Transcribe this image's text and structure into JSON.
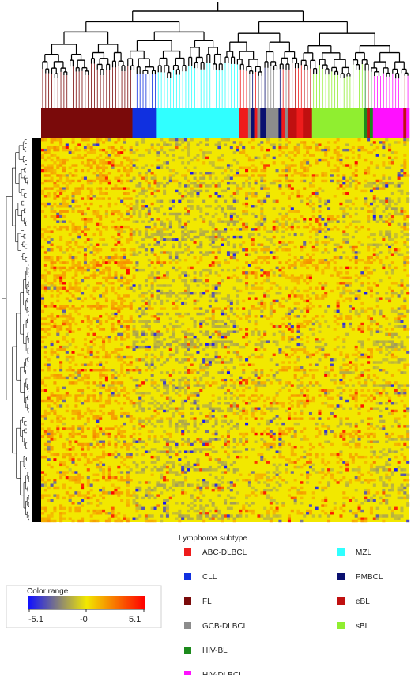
{
  "chart_data": {
    "type": "heatmap",
    "title": "",
    "xlabel": "",
    "ylabel": "",
    "color_scale": {
      "label": "Color range",
      "min": -5.1,
      "mid": 0,
      "max": 5.1,
      "tick_labels": [
        "-5.1",
        "-0",
        "5.1"
      ],
      "colors": [
        "#1010ff",
        "#f2e800",
        "#ff0000"
      ]
    },
    "legend": {
      "title": "Lymphoma subtype",
      "placement": "bottom",
      "entries": [
        {
          "label": "ABC-DLBCL",
          "color": "#ee1c1c"
        },
        {
          "label": "CLL",
          "color": "#1030e0"
        },
        {
          "label": "FL",
          "color": "#7a0a0a"
        },
        {
          "label": "GCB-DLBCL",
          "color": "#8c8c8c"
        },
        {
          "label": "HIV-BL",
          "color": "#1c8a1c"
        },
        {
          "label": "HIV-DLBCL",
          "color": "#ff10ff"
        },
        {
          "label": "MZL",
          "color": "#30ffff"
        },
        {
          "label": "PMBCL",
          "color": "#0a1070"
        },
        {
          "label": "eBL",
          "color": "#c01010"
        },
        {
          "label": "sBL",
          "color": "#90ee30"
        }
      ]
    },
    "column_groups": [
      {
        "subtype": "FL",
        "count": 30
      },
      {
        "subtype": "CLL",
        "count": 8
      },
      {
        "subtype": "MZL",
        "count": 27
      },
      {
        "subtype": "ABC-DLBCL",
        "count": 3
      },
      {
        "subtype": "GCB-DLBCL",
        "count": 1
      },
      {
        "subtype": "PMBCL",
        "count": 1
      },
      {
        "subtype": "ABC-DLBCL",
        "count": 1
      },
      {
        "subtype": "GCB-DLBCL",
        "count": 1
      },
      {
        "subtype": "PMBCL",
        "count": 2
      },
      {
        "subtype": "GCB-DLBCL",
        "count": 4
      },
      {
        "subtype": "PMBCL",
        "count": 1
      },
      {
        "subtype": "ABC-DLBCL",
        "count": 1
      },
      {
        "subtype": "GCB-DLBCL",
        "count": 1
      },
      {
        "subtype": "eBL",
        "count": 3
      },
      {
        "subtype": "ABC-DLBCL",
        "count": 2
      },
      {
        "subtype": "eBL",
        "count": 3
      },
      {
        "subtype": "sBL",
        "count": 17
      },
      {
        "subtype": "HIV-BL",
        "count": 1
      },
      {
        "subtype": "eBL",
        "count": 1
      },
      {
        "subtype": "HIV-BL",
        "count": 1
      },
      {
        "subtype": "HIV-DLBCL",
        "count": 10
      },
      {
        "subtype": "eBL",
        "count": 1
      },
      {
        "subtype": "HIV-DLBCL",
        "count": 1
      }
    ],
    "dendrograms": {
      "columns": true,
      "rows": true
    }
  }
}
